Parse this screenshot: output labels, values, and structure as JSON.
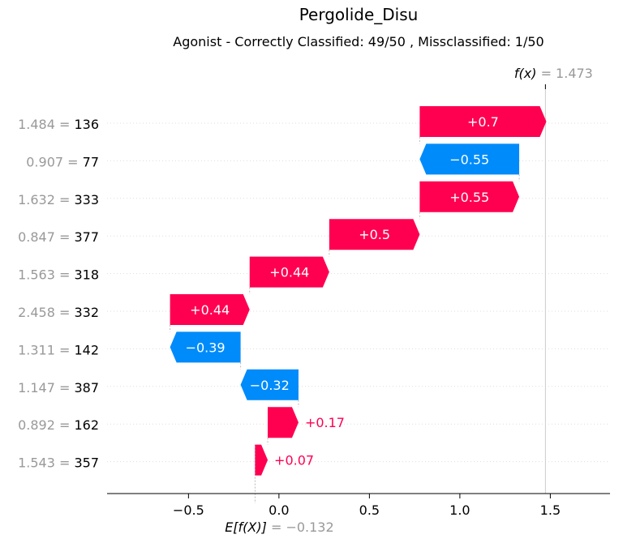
{
  "title": "Pergolide_Disu",
  "subtitle": "Agonist - Correctly Classified: 49/50 , Missclassified: 1/50",
  "colors": {
    "positive": "#ff0051",
    "negative": "#008bfb",
    "grey": "#999999",
    "axis": "#000000"
  },
  "chart_data": {
    "type": "waterfall",
    "base_value": -0.132,
    "base_label": "E[f(X)]",
    "base_value_text": "= −0.132",
    "output_value": 1.473,
    "output_label": "f(x)",
    "output_value_text": "= 1.473",
    "xlim": [
      -0.95,
      1.83
    ],
    "xticks": [
      -0.5,
      0.0,
      0.5,
      1.0,
      1.5
    ],
    "xtick_labels": [
      "−0.5",
      "0.0",
      "0.5",
      "1.0",
      "1.5"
    ],
    "features": [
      {
        "value": "1.484",
        "name": "136",
        "contribution": 0.7,
        "label": "+0.7"
      },
      {
        "value": "0.907",
        "name": "77",
        "contribution": -0.55,
        "label": "−0.55"
      },
      {
        "value": "1.632",
        "name": "333",
        "contribution": 0.55,
        "label": "+0.55"
      },
      {
        "value": "0.847",
        "name": "377",
        "contribution": 0.5,
        "label": "+0.5"
      },
      {
        "value": "1.563",
        "name": "318",
        "contribution": 0.44,
        "label": "+0.44"
      },
      {
        "value": "2.458",
        "name": "332",
        "contribution": 0.44,
        "label": "+0.44"
      },
      {
        "value": "1.311",
        "name": "142",
        "contribution": -0.39,
        "label": "−0.39"
      },
      {
        "value": "1.147",
        "name": "387",
        "contribution": -0.32,
        "label": "−0.32"
      },
      {
        "value": "0.892",
        "name": "162",
        "contribution": 0.17,
        "label": "+0.17"
      },
      {
        "value": "1.543",
        "name": "357",
        "contribution": 0.07,
        "label": "+0.07"
      }
    ]
  }
}
